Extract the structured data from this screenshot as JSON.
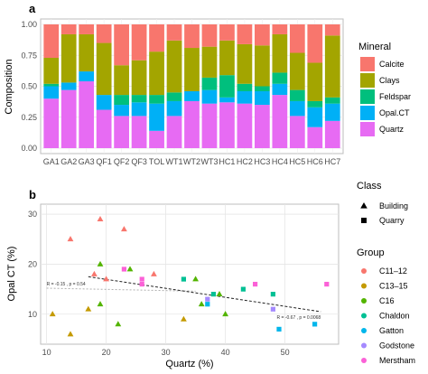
{
  "chart_data": [
    {
      "type": "bar",
      "stacked": true,
      "panel_label": "a",
      "xlabel": "",
      "ylabel": "Composition",
      "ylim": [
        0,
        1
      ],
      "yticks": [
        "0.00",
        "0.25",
        "0.50",
        "0.75",
        "1.00"
      ],
      "grid": true,
      "legend_title": "Mineral",
      "legend_position": "right",
      "categories": [
        "GA1",
        "GA2",
        "GA3",
        "QF1",
        "QF2",
        "QF3",
        "TOL",
        "WT1",
        "WT2",
        "WT3",
        "HC1",
        "HC2",
        "HC3",
        "HC4",
        "HC5",
        "HC6",
        "HC7"
      ],
      "series": [
        {
          "name": "Quartz",
          "color": "#E76BF3",
          "values": [
            0.4,
            0.47,
            0.54,
            0.31,
            0.26,
            0.26,
            0.14,
            0.26,
            0.38,
            0.36,
            0.37,
            0.36,
            0.35,
            0.43,
            0.26,
            0.17,
            0.22
          ]
        },
        {
          "name": "Opal.CT",
          "color": "#00B0F6",
          "values": [
            0.1,
            0.06,
            0.08,
            0.12,
            0.09,
            0.11,
            0.22,
            0.12,
            0.08,
            0.11,
            0.04,
            0.1,
            0.11,
            0.09,
            0.12,
            0.16,
            0.14
          ]
        },
        {
          "name": "Feldspar",
          "color": "#00BF7D",
          "values": [
            0.02,
            0.0,
            0.0,
            0.0,
            0.08,
            0.06,
            0.07,
            0.07,
            0.0,
            0.1,
            0.18,
            0.06,
            0.04,
            0.09,
            0.09,
            0.05,
            0.05
          ]
        },
        {
          "name": "Clays",
          "color": "#A3A500",
          "values": [
            0.21,
            0.39,
            0.3,
            0.42,
            0.24,
            0.28,
            0.35,
            0.42,
            0.35,
            0.25,
            0.28,
            0.32,
            0.33,
            0.31,
            0.3,
            0.31,
            0.5
          ]
        },
        {
          "name": "Calcite",
          "color": "#F8766D",
          "values": [
            0.27,
            0.08,
            0.08,
            0.15,
            0.33,
            0.29,
            0.22,
            0.13,
            0.19,
            0.18,
            0.13,
            0.16,
            0.17,
            0.08,
            0.23,
            0.31,
            0.09
          ]
        }
      ]
    },
    {
      "type": "scatter",
      "panel_label": "b",
      "xlabel": "Quartz (%)",
      "ylabel": "Opal CT (%)",
      "xlim": [
        9,
        59
      ],
      "ylim": [
        4,
        32
      ],
      "xticks": [
        10,
        20,
        30,
        40,
        50
      ],
      "yticks": [
        10,
        20,
        30
      ],
      "grid": true,
      "class_legend": {
        "title": "Class",
        "items": [
          {
            "name": "Building",
            "shape": "triangle"
          },
          {
            "name": "Quarry",
            "shape": "square"
          }
        ]
      },
      "group_legend": {
        "title": "Group",
        "items": [
          {
            "name": "C11–12",
            "color": "#F8766D"
          },
          {
            "name": "C13–15",
            "color": "#C49A00"
          },
          {
            "name": "C16",
            "color": "#53B400"
          },
          {
            "name": "Chaldon",
            "color": "#00C094"
          },
          {
            "name": "Gatton",
            "color": "#00B6EB"
          },
          {
            "name": "Godstone",
            "color": "#A58AFF"
          },
          {
            "name": "Merstham",
            "color": "#FB61D7"
          }
        ]
      },
      "points": [
        {
          "x": 14,
          "y": 25,
          "group": "C11–12",
          "class": "Building"
        },
        {
          "x": 19,
          "y": 29,
          "group": "C11–12",
          "class": "Building"
        },
        {
          "x": 23,
          "y": 27,
          "group": "C11–12",
          "class": "Building"
        },
        {
          "x": 18,
          "y": 18,
          "group": "C11–12",
          "class": "Building"
        },
        {
          "x": 20,
          "y": 17,
          "group": "C11–12",
          "class": "Building"
        },
        {
          "x": 28,
          "y": 18,
          "group": "C11–12",
          "class": "Building"
        },
        {
          "x": 11,
          "y": 10,
          "group": "C13–15",
          "class": "Building"
        },
        {
          "x": 14,
          "y": 6,
          "group": "C13–15",
          "class": "Building"
        },
        {
          "x": 17,
          "y": 11,
          "group": "C13–15",
          "class": "Building"
        },
        {
          "x": 33,
          "y": 9,
          "group": "C13–15",
          "class": "Building"
        },
        {
          "x": 19,
          "y": 20,
          "group": "C16",
          "class": "Building"
        },
        {
          "x": 19,
          "y": 12,
          "group": "C16",
          "class": "Building"
        },
        {
          "x": 22,
          "y": 8,
          "group": "C16",
          "class": "Building"
        },
        {
          "x": 24,
          "y": 19,
          "group": "C16",
          "class": "Building"
        },
        {
          "x": 35,
          "y": 17,
          "group": "C16",
          "class": "Building"
        },
        {
          "x": 36,
          "y": 12,
          "group": "C16",
          "class": "Building"
        },
        {
          "x": 39,
          "y": 14,
          "group": "C16",
          "class": "Building"
        },
        {
          "x": 40,
          "y": 10,
          "group": "C16",
          "class": "Building"
        },
        {
          "x": 33,
          "y": 17,
          "group": "Chaldon",
          "class": "Quarry"
        },
        {
          "x": 38,
          "y": 14,
          "group": "Chaldon",
          "class": "Quarry"
        },
        {
          "x": 43,
          "y": 15,
          "group": "Chaldon",
          "class": "Quarry"
        },
        {
          "x": 48,
          "y": 14,
          "group": "Chaldon",
          "class": "Quarry"
        },
        {
          "x": 37,
          "y": 12,
          "group": "Gatton",
          "class": "Quarry"
        },
        {
          "x": 49,
          "y": 7,
          "group": "Gatton",
          "class": "Quarry"
        },
        {
          "x": 55,
          "y": 8,
          "group": "Gatton",
          "class": "Quarry"
        },
        {
          "x": 37,
          "y": 13,
          "group": "Godstone",
          "class": "Quarry"
        },
        {
          "x": 48,
          "y": 11,
          "group": "Godstone",
          "class": "Quarry"
        },
        {
          "x": 23,
          "y": 19,
          "group": "Merstham",
          "class": "Quarry"
        },
        {
          "x": 26,
          "y": 16,
          "group": "Merstham",
          "class": "Quarry"
        },
        {
          "x": 26,
          "y": 17,
          "group": "Merstham",
          "class": "Quarry"
        },
        {
          "x": 45,
          "y": 16,
          "group": "Merstham",
          "class": "Quarry"
        },
        {
          "x": 57,
          "y": 16,
          "group": "Merstham",
          "class": "Quarry"
        }
      ],
      "fits": [
        {
          "label": "R = -0.15 , p = 0.54",
          "x": [
            10,
            35
          ],
          "y": [
            15.2,
            14.6
          ]
        },
        {
          "label": "R = -0.67 , p = 0.0068",
          "x": [
            17,
            56
          ],
          "y": [
            17.5,
            10.5
          ]
        }
      ]
    }
  ]
}
